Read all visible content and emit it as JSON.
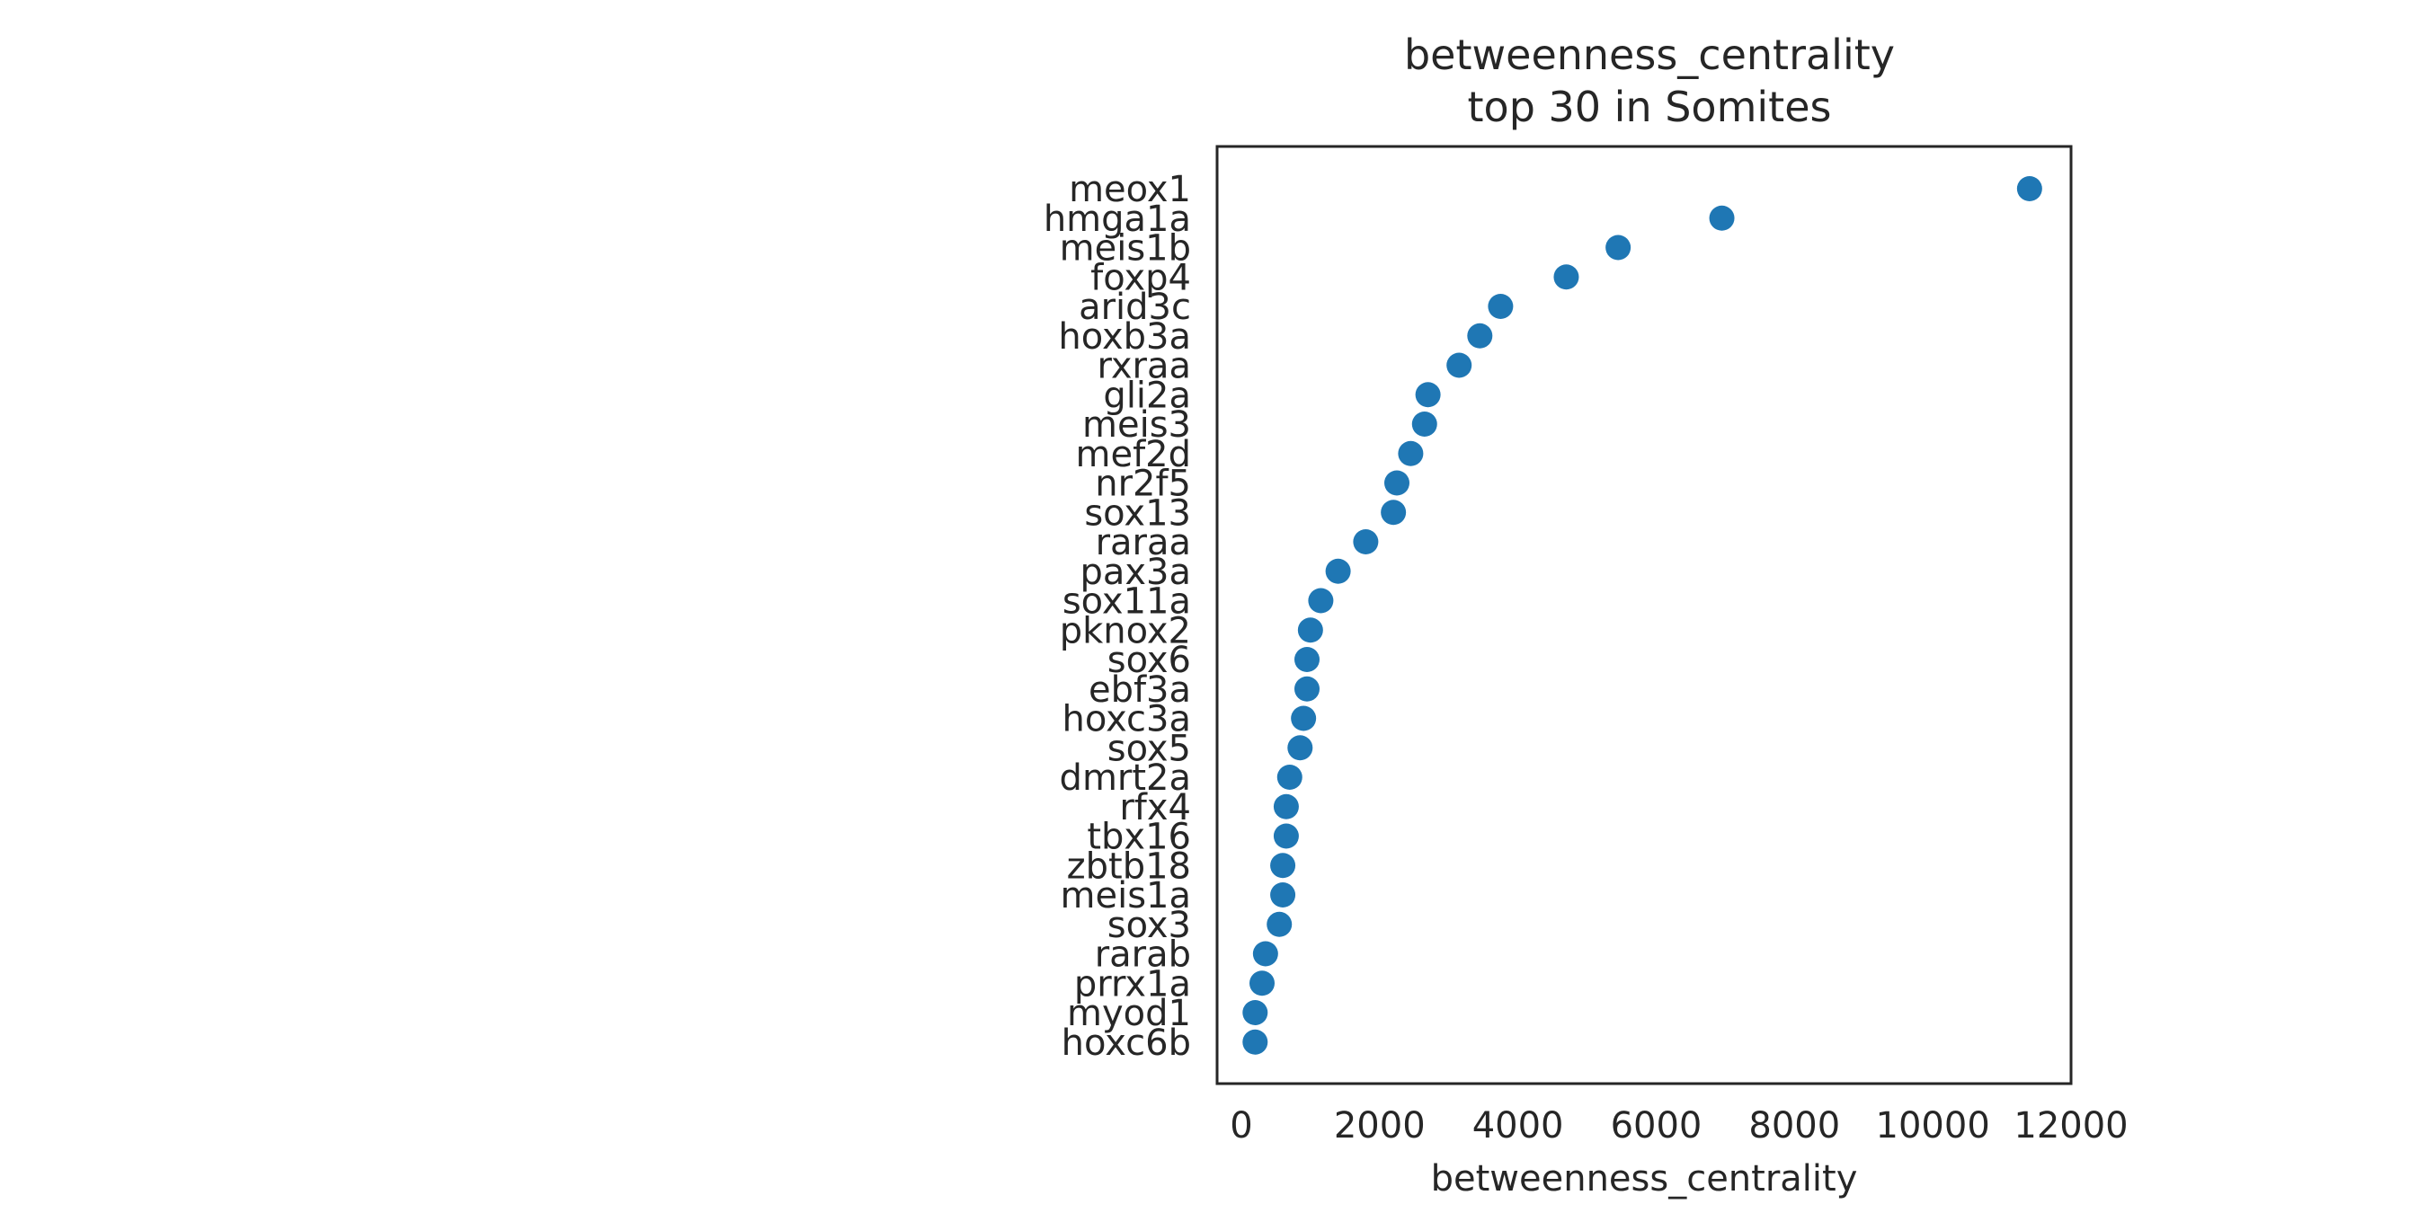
{
  "chart_data": {
    "type": "scatter",
    "title_line1": "betweenness_centrality",
    "title_line2": "top 30 in Somites",
    "xlabel": "betweenness_centrality",
    "ylabel": "",
    "xlim": [
      -350,
      12000
    ],
    "xticks": [
      0,
      2000,
      4000,
      6000,
      8000,
      10000,
      12000
    ],
    "xtick_labels": [
      "0",
      "2000",
      "4000",
      "6000",
      "8000",
      "10000",
      "12000"
    ],
    "grid": false,
    "marker_color": "#1f77b4",
    "categories": [
      "meox1",
      "hmga1a",
      "meis1b",
      "foxp4",
      "arid3c",
      "hoxb3a",
      "rxraa",
      "gli2a",
      "meis3",
      "mef2d",
      "nr2f5",
      "sox13",
      "raraa",
      "pax3a",
      "sox11a",
      "pknox2",
      "sox6",
      "ebf3a",
      "hoxc3a",
      "sox5",
      "dmrt2a",
      "rfx4",
      "tbx16",
      "zbtb18",
      "meis1a",
      "sox3",
      "rarab",
      "prrx1a",
      "myod1",
      "hoxc6b"
    ],
    "values": [
      11400,
      6950,
      5450,
      4700,
      3750,
      3450,
      3150,
      2700,
      2650,
      2450,
      2250,
      2200,
      1800,
      1400,
      1150,
      1000,
      950,
      950,
      900,
      850,
      700,
      650,
      650,
      600,
      600,
      550,
      350,
      300,
      200,
      200
    ]
  }
}
